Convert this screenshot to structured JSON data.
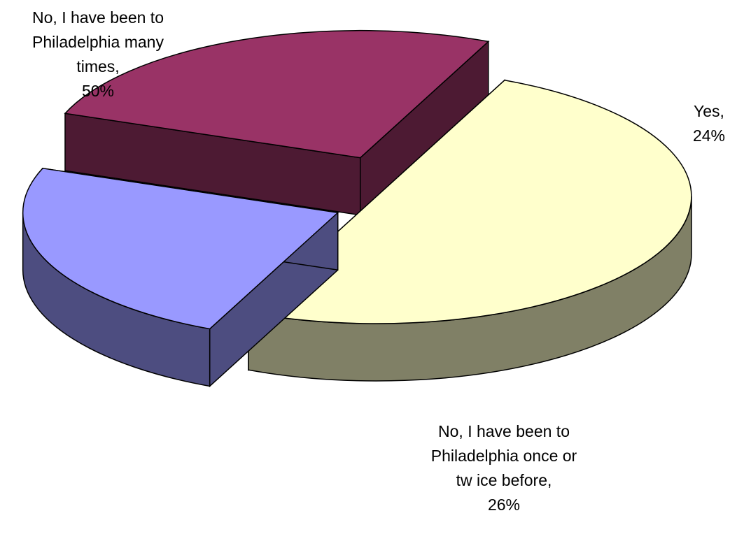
{
  "chart_data": {
    "type": "pie",
    "title": "",
    "slices": [
      {
        "label": "No, I have been to Philadelphia many times",
        "value": 50,
        "display": "No, I have been to\nPhiladelphia many\ntimes,\n50%",
        "color": "#FFFFCC"
      },
      {
        "label": "Yes",
        "value": 24,
        "display": "Yes,\n24%",
        "color": "#9999FF"
      },
      {
        "label": "No, I have been to Philadelphia once or twice before",
        "value": 26,
        "display": "No, I have been to\nPhiladelphia once or\ntw ice before,\n26%",
        "color": "#993366"
      }
    ],
    "legend": "none",
    "style": "3d-exploded"
  }
}
